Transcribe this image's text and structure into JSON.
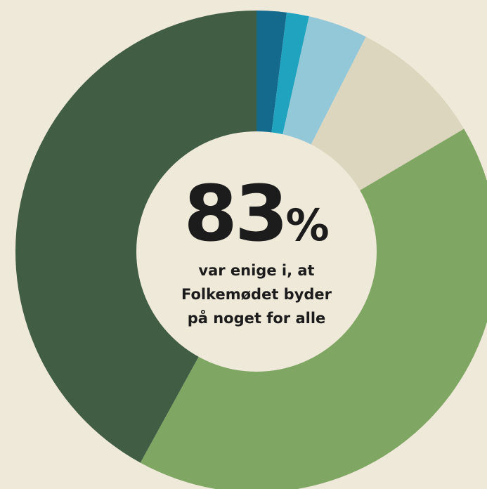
{
  "chart_data": {
    "type": "donut",
    "values": [
      2,
      1.5,
      4,
      9,
      41.5,
      42
    ],
    "colors": [
      "#146a8d",
      "#1fa3bf",
      "#93c8d9",
      "#ddd6bf",
      "#80a663",
      "#415e45"
    ],
    "start_angle": 0,
    "center_number": "83",
    "center_unit": "%",
    "caption": [
      "var enige i, at",
      "Folkemødet byder",
      "på noget for alle"
    ]
  }
}
